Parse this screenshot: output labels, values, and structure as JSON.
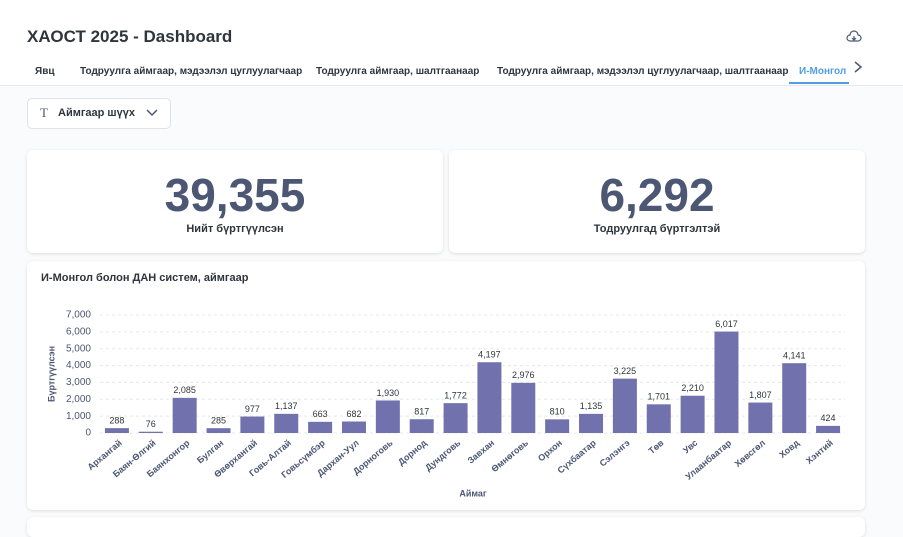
{
  "header": {
    "title": "ХАОСТ 2025 - Dashboard"
  },
  "tabs": [
    "Явц",
    "Тодруулга аймгаар, мэдээлэл цуглуулагчаар",
    "Тодруулга аймгаар, шалтгаанаар",
    "Тодруулга аймгаар, мэдээлэл цуглуулагчаар, шалтгаанаар",
    "И-Монгол б"
  ],
  "filter": {
    "label": "Аймгаар шүүх"
  },
  "kpis": [
    {
      "value": "39,355",
      "label": "Нийт бүртгүүлсэн"
    },
    {
      "value": "6,292",
      "label": "Тодруулгад бүртгэлтэй"
    }
  ],
  "chart_data": {
    "type": "bar",
    "title": "И-Монгол болон ДАН систем, аймгаар",
    "categories": [
      "Архангай",
      "Баян-Өлгий",
      "Баянхонгор",
      "Булган",
      "Өвөрхангай",
      "Говь-Алтай",
      "Говьсүмбэр",
      "Дархан-Уул",
      "Дорноговь",
      "Дорнод",
      "Дундговь",
      "Завхан",
      "Өмнөговь",
      "Орхон",
      "Сүхбаатар",
      "Сэлэнгэ",
      "Төв",
      "Увс",
      "Улаанбаатар",
      "Хөвсгөл",
      "Ховд",
      "Хэнтий"
    ],
    "values": [
      288,
      76,
      2085,
      285,
      977,
      1137,
      663,
      682,
      1930,
      817,
      1772,
      4197,
      2976,
      810,
      1135,
      3225,
      1701,
      2210,
      6017,
      1807,
      4141,
      424
    ],
    "value_labels": [
      "288",
      "76",
      "2,085",
      "285",
      "977",
      "1,137",
      "663",
      "682",
      "1,930",
      "817",
      "1,772",
      "4,197",
      "2,976",
      "810",
      "1,135",
      "3,225",
      "1,701",
      "2,210",
      "6,017",
      "1,807",
      "4,141",
      "424"
    ],
    "color": "#7172ad",
    "xlabel": "Аймаг",
    "ylabel": "Бүртгүүлсэн",
    "ylim": [
      0,
      7000
    ],
    "yticks": [
      0,
      {
        "value": 1000,
        "label": "1,000"
      },
      {
        "value": 2000,
        "label": "2,000"
      },
      {
        "value": 3000,
        "label": "3,000"
      },
      {
        "value": 4000,
        "label": "4,000"
      },
      {
        "value": 5000,
        "label": "5,000"
      },
      {
        "value": 6000,
        "label": "6,000"
      },
      {
        "value": 7000,
        "label": "7,000"
      }
    ],
    "grid": true
  }
}
